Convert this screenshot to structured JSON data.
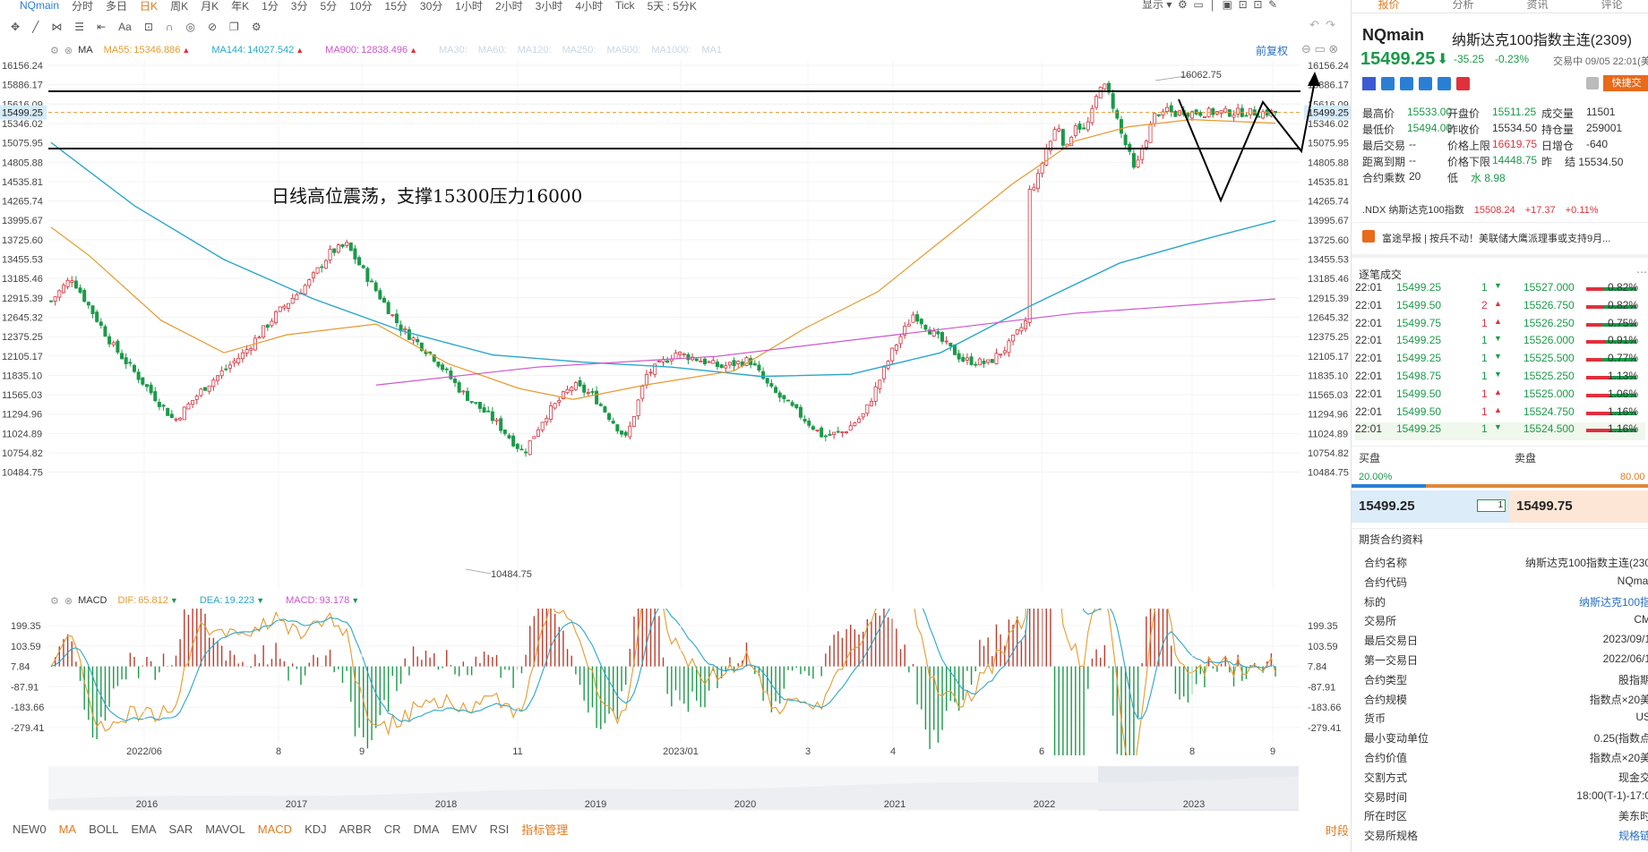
{
  "toolbar": {
    "symbol": "NQmain",
    "periods": [
      "分时",
      "多日",
      "日K",
      "周K",
      "月K",
      "年K",
      "1分",
      "3分",
      "5分",
      "10分",
      "15分",
      "30分",
      "1小时",
      "2小时",
      "3小时",
      "4小时",
      "Tick",
      "5天 : 5分K"
    ],
    "active_period": "日K",
    "display_label": "显示"
  },
  "main_legend": {
    "indicator": "MA",
    "items": [
      {
        "label": "MA55:",
        "value": "15346.886",
        "color": "#e69a2e"
      },
      {
        "label": "MA144:",
        "value": "14027.542",
        "color": "#2aa7c9"
      },
      {
        "label": "MA900:",
        "value": "12838.496",
        "color": "#cc55cc"
      }
    ],
    "inactive": [
      "MA30:",
      "MA60:",
      "MA120:",
      "MA250:",
      "MA500:",
      "MA1000:",
      "MA1"
    ],
    "adjust_label": "前复权"
  },
  "main_chart": {
    "y_ticks": [
      "16156.24",
      "15886.17",
      "15616.09",
      "15346.02",
      "15075.95",
      "14805.88",
      "14535.81",
      "14265.74",
      "13995.67",
      "13725.60",
      "13455.53",
      "13185.46",
      "12915.39",
      "12645.32",
      "12375.25",
      "12105.17",
      "11835.10",
      "11565.03",
      "11294.96",
      "11024.89",
      "10754.82",
      "10484.75"
    ],
    "current_price_tag": "15499.25",
    "high_label": "16062.75",
    "low_label": "10484.75",
    "annotation": "日线高位震荡，支撑15300压力16000",
    "x_ticks": [
      "2022/06",
      "8",
      "9",
      "11",
      "2023/01",
      "3",
      "4",
      "6",
      "8",
      "9"
    ]
  },
  "macd_legend": {
    "indicator": "MACD",
    "items": [
      {
        "label": "DIF:",
        "value": "65.812",
        "color": "#e69a2e"
      },
      {
        "label": "DEA:",
        "value": "19.223",
        "color": "#2aa7c9"
      },
      {
        "label": "MACD:",
        "value": "93.178",
        "color": "#cc55cc"
      }
    ]
  },
  "macd_chart": {
    "y_ticks": [
      "199.35",
      "103.59",
      "7.84",
      "-87.91",
      "-183.66",
      "-279.41"
    ]
  },
  "overview_years": [
    "2016",
    "2017",
    "2018",
    "2019",
    "2020",
    "2021",
    "2022",
    "2023"
  ],
  "bottom_tabs": [
    "NEW0",
    "MA",
    "BOLL",
    "EMA",
    "SAR",
    "MAVOL",
    "MACD",
    "KDJ",
    "ARBR",
    "CR",
    "DMA",
    "EMV",
    "RSI",
    "指标管理"
  ],
  "bottom_active": [
    "MA",
    "MACD"
  ],
  "bottom_right": "时段",
  "right_panel": {
    "tabs": [
      "报价",
      "分析",
      "资讯",
      "评论"
    ],
    "symbol": "NQmain",
    "name": "纳斯达克100指数主连(2309)",
    "price": "15499.25",
    "change": "-35.25",
    "change_pct": "-0.23%",
    "status": "交易中 09/05 22:01(美",
    "quick_trade": "快捷交",
    "stats": [
      [
        "最高价",
        "15533.00",
        "开盘价",
        "15511.25",
        "成交量",
        "11501"
      ],
      [
        "最低价",
        "15494.00",
        "昨收价",
        "15534.50",
        "持仓量",
        "259001"
      ],
      [
        "最后交易",
        "--",
        "价格上限",
        "16619.75",
        "日增仓",
        "-640"
      ],
      [
        "距离到期",
        "--",
        "价格下限",
        "14448.75",
        "昨",
        "结 15534.50"
      ],
      [
        "合约乘数",
        "20",
        "低",
        "水 8.98",
        "",
        ""
      ]
    ],
    "index": {
      "name": ".NDX 纳斯达克100指数",
      "price": "15508.24",
      "change": "+17.37",
      "pct": "+0.11%"
    },
    "news": "富途早报 | 按兵不动！美联储大鹰派理事或支持9月...",
    "trades_title": "逐笔成交",
    "trades": [
      {
        "t": "22:01",
        "p": "15499.25",
        "v": "1",
        "dir": "down"
      },
      {
        "t": "22:01",
        "p": "15499.50",
        "v": "2",
        "dir": "up"
      },
      {
        "t": "22:01",
        "p": "15499.75",
        "v": "1",
        "dir": "up"
      },
      {
        "t": "22:01",
        "p": "15499.25",
        "v": "1",
        "dir": "down"
      },
      {
        "t": "22:01",
        "p": "15499.25",
        "v": "1",
        "dir": "down"
      },
      {
        "t": "22:01",
        "p": "15498.75",
        "v": "1",
        "dir": "down"
      },
      {
        "t": "22:01",
        "p": "15499.50",
        "v": "1",
        "dir": "up"
      },
      {
        "t": "22:01",
        "p": "15499.50",
        "v": "1",
        "dir": "up"
      },
      {
        "t": "22:01",
        "p": "15499.25",
        "v": "1",
        "dir": "down"
      }
    ],
    "depth": [
      {
        "p": "15527.000",
        "pct": "0.82%",
        "fill": 0.35
      },
      {
        "p": "15526.750",
        "pct": "0.82%",
        "fill": 0.35
      },
      {
        "p": "15526.250",
        "pct": "0.75%",
        "fill": 0.32
      },
      {
        "p": "15526.000",
        "pct": "0.91%",
        "fill": 0.39
      },
      {
        "p": "15525.500",
        "pct": "0.77%",
        "fill": 0.33
      },
      {
        "p": "15525.250",
        "pct": "1.13%",
        "fill": 0.5
      },
      {
        "p": "15525.000",
        "pct": "1.06%",
        "fill": 0.46
      },
      {
        "p": "15524.750",
        "pct": "1.16%",
        "fill": 0.51
      },
      {
        "p": "15524.500",
        "pct": "1.16%",
        "fill": 0.51
      }
    ],
    "bid_label": "买盘",
    "ask_label": "卖盘",
    "bid_pct": "20.00%",
    "ask_pct": "80.00",
    "bid_price": "15499.25",
    "bid_qty": "1",
    "ask_price": "15499.75",
    "contract_title": "期货合约资料",
    "contract": [
      [
        "合约名称",
        "纳斯达克100指数主连(230"
      ],
      [
        "合约代码",
        "NQmai"
      ],
      [
        "标的",
        "纳斯达克100指"
      ],
      [
        "交易所",
        "CM"
      ],
      [
        "最后交易日",
        "2023/09/1"
      ],
      [
        "第一交易日",
        "2022/06/1"
      ],
      [
        "合约类型",
        "股指期"
      ],
      [
        "合约规模",
        "指数点×20美"
      ],
      [
        "货币",
        "US"
      ],
      [
        "最小变动单位",
        "0.25(指数点"
      ],
      [
        "合约价值",
        "指数点×20美"
      ],
      [
        "交割方式",
        "现金交"
      ],
      [
        "交易时间",
        "18:00(T-1)-17:0"
      ],
      [
        "所在时区",
        "美东时"
      ],
      [
        "交易所规格",
        "规格链"
      ]
    ]
  }
}
